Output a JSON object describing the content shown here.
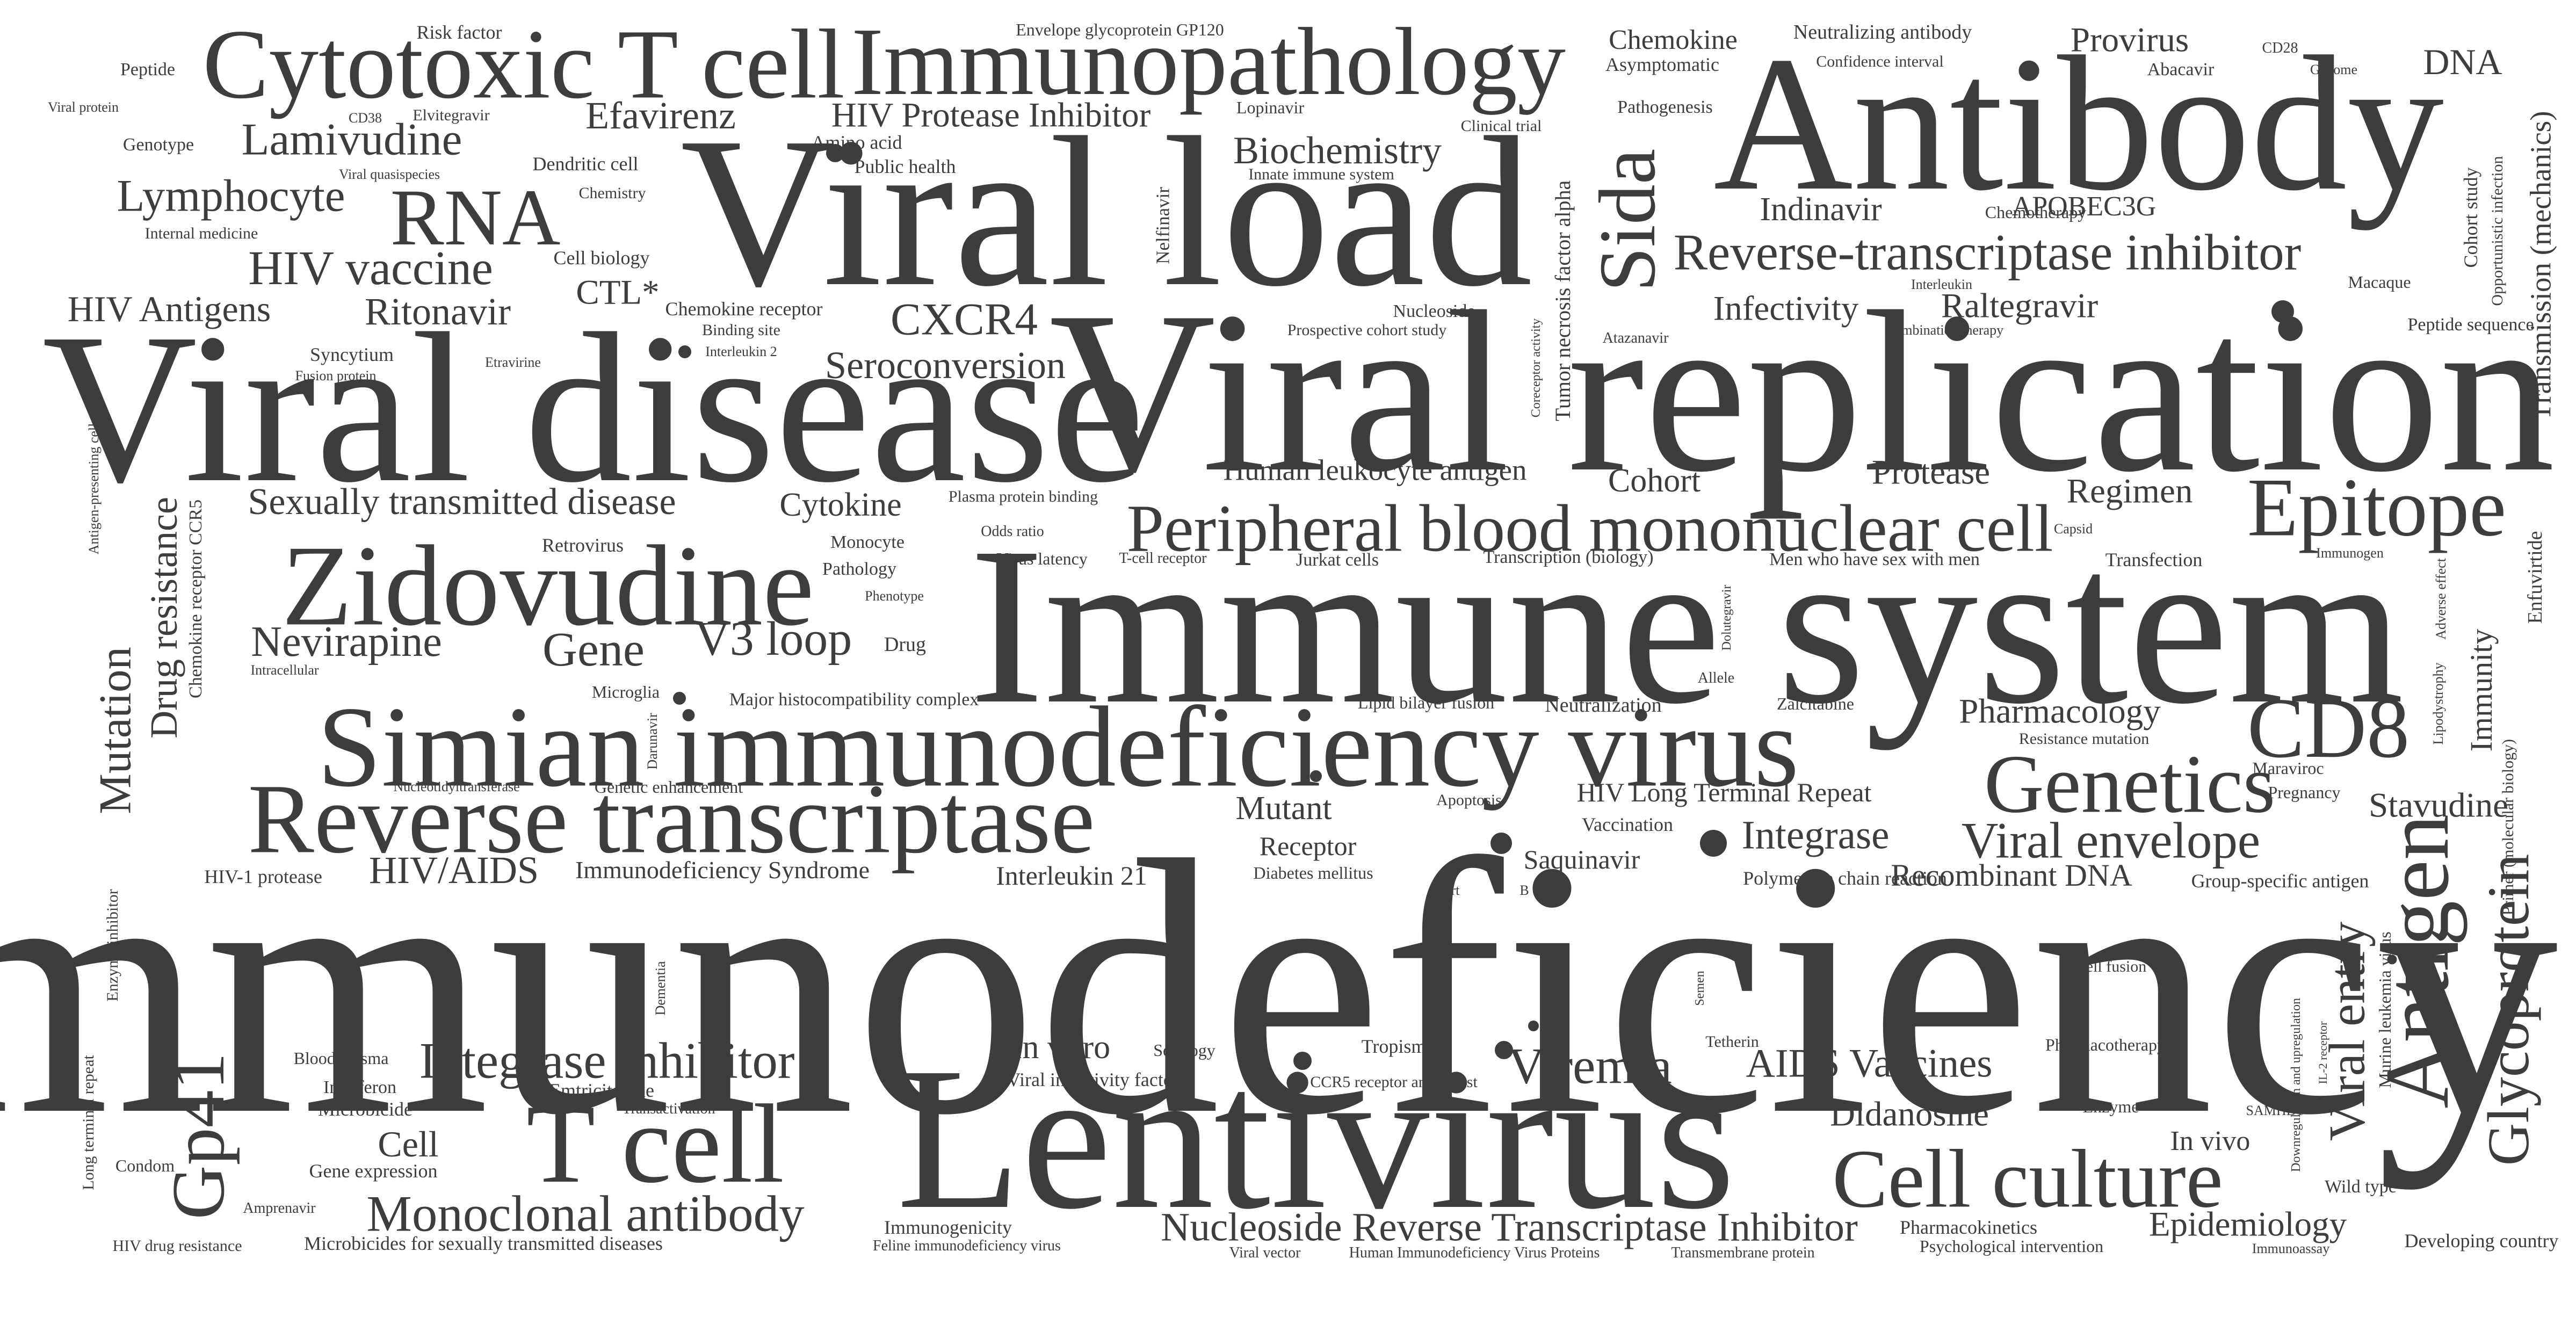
{
  "colors": {
    "background": "#ffffff",
    "text": "#3d3d3d"
  },
  "words": [
    {
      "text": "Immunodeficiency",
      "weight": 1.0
    },
    {
      "text": "Viral replication",
      "weight": 0.78
    },
    {
      "text": "Immune system",
      "weight": 0.76
    },
    {
      "text": "Viral disease",
      "weight": 0.72
    },
    {
      "text": "Viral load",
      "weight": 0.72
    },
    {
      "text": "Lentivirus",
      "weight": 0.72
    },
    {
      "text": "Antibody",
      "weight": 0.7
    },
    {
      "text": "Simian immunodeficiency virus",
      "weight": 0.38
    },
    {
      "text": "Reverse transcriptase",
      "weight": 0.36
    },
    {
      "text": "Zidovudine",
      "weight": 0.4
    },
    {
      "text": "Cytotoxic T cell",
      "weight": 0.34
    },
    {
      "text": "Immunopathology",
      "weight": 0.34
    },
    {
      "text": "T cell",
      "weight": 0.4
    },
    {
      "text": "Peripheral blood mononuclear cell",
      "weight": 0.24
    },
    {
      "text": "Epitope",
      "weight": 0.3
    },
    {
      "text": "CD8",
      "weight": 0.32
    },
    {
      "text": "Genetics",
      "weight": 0.3
    },
    {
      "text": "Antigen",
      "weight": 0.32
    },
    {
      "text": "Cell culture",
      "weight": 0.3
    },
    {
      "text": "Sida",
      "weight": 0.28
    },
    {
      "text": "RNA",
      "weight": 0.28
    },
    {
      "text": "Gp41",
      "weight": 0.26
    },
    {
      "text": "Viremia",
      "weight": 0.18
    },
    {
      "text": "Monoclonal antibody",
      "weight": 0.18
    },
    {
      "text": "Integrase inhibitor",
      "weight": 0.18
    },
    {
      "text": "Reverse-transcriptase inhibitor",
      "weight": 0.18
    },
    {
      "text": "Nucleoside Reverse Transcriptase Inhibitor",
      "weight": 0.15
    },
    {
      "text": "Glycoprotein",
      "weight": 0.22
    },
    {
      "text": "Viral envelope",
      "weight": 0.18
    },
    {
      "text": "Viral entry",
      "weight": 0.18
    },
    {
      "text": "Lymphocyte",
      "weight": 0.16
    },
    {
      "text": "HIV vaccine",
      "weight": 0.18
    },
    {
      "text": "Lamivudine",
      "weight": 0.17
    },
    {
      "text": "Efavirenz",
      "weight": 0.14
    },
    {
      "text": "Nevirapine",
      "weight": 0.15
    },
    {
      "text": "Gene",
      "weight": 0.16
    },
    {
      "text": "V3 loop",
      "weight": 0.17
    },
    {
      "text": "Mutation",
      "weight": 0.16
    },
    {
      "text": "Drug resistance",
      "weight": 0.14
    },
    {
      "text": "HIV/AIDS",
      "weight": 0.14
    },
    {
      "text": "Sexually transmitted disease",
      "weight": 0.14
    },
    {
      "text": "Seroconversion",
      "weight": 0.14
    },
    {
      "text": "CXCR4",
      "weight": 0.16
    },
    {
      "text": "Ritonavir",
      "weight": 0.14
    },
    {
      "text": "HIV Antigens",
      "weight": 0.13
    },
    {
      "text": "Biochemistry",
      "weight": 0.14
    },
    {
      "text": "HIV Protease Inhibitor",
      "weight": 0.13
    },
    {
      "text": "Indinavir",
      "weight": 0.13
    },
    {
      "text": "Infectivity",
      "weight": 0.13
    },
    {
      "text": "Raltegravir",
      "weight": 0.13
    },
    {
      "text": "Integrase",
      "weight": 0.15
    },
    {
      "text": "Epidemiology",
      "weight": 0.13
    },
    {
      "text": "AIDS Vaccines",
      "weight": 0.15
    },
    {
      "text": "Didanosine",
      "weight": 0.13
    },
    {
      "text": "Stavudine",
      "weight": 0.12
    },
    {
      "text": "Pharmacology",
      "weight": 0.12
    },
    {
      "text": "Regimen",
      "weight": 0.12
    },
    {
      "text": "Protease",
      "weight": 0.12
    },
    {
      "text": "Cohort",
      "weight": 0.12
    },
    {
      "text": "Cytokine",
      "weight": 0.12
    },
    {
      "text": "Human leukocyte antigen",
      "weight": 0.11
    },
    {
      "text": "Mutant",
      "weight": 0.12
    },
    {
      "text": "In vitro",
      "weight": 0.12
    },
    {
      "text": "Cell",
      "weight": 0.14
    },
    {
      "text": "Provirus",
      "weight": 0.12
    },
    {
      "text": "DNA",
      "weight": 0.12
    },
    {
      "text": "APOBEC3G",
      "weight": 0.1
    },
    {
      "text": "Recombinant DNA",
      "weight": 0.11
    },
    {
      "text": "Saquinavir",
      "weight": 0.1
    },
    {
      "text": "Immunity",
      "weight": 0.1
    },
    {
      "text": "Interleukin 21",
      "weight": 0.1
    },
    {
      "text": "Receptor",
      "weight": 0.1
    },
    {
      "text": "HIV Long Terminal Repeat",
      "weight": 0.1
    },
    {
      "text": "Transmission (mechanics)",
      "weight": 0.1
    },
    {
      "text": "Chemokine",
      "weight": 0.09
    },
    {
      "text": "In vivo",
      "weight": 0.1
    },
    {
      "text": "CTL*",
      "weight": 0.12
    },
    {
      "text": "Immunodeficiency Syndrome",
      "weight": 0.09
    },
    {
      "text": "Tumor necrosis factor alpha",
      "weight": 0.07
    },
    {
      "text": "Nelfinavir",
      "weight": 0.06
    },
    {
      "text": "Enfuvirtide",
      "weight": 0.06
    },
    {
      "text": "Cohort study",
      "weight": 0.06
    },
    {
      "text": "Opportunistic infection",
      "weight": 0.05
    },
    {
      "text": "Murine leukemia virus",
      "weight": 0.05
    },
    {
      "text": "Primer (molecular biology)",
      "weight": 0.05
    },
    {
      "text": "Dolutegravir",
      "weight": 0.04
    },
    {
      "text": "Coreceptor activity",
      "weight": 0.04
    },
    {
      "text": "Lipodystrophy",
      "weight": 0.04
    },
    {
      "text": "Adverse effect",
      "weight": 0.04
    },
    {
      "text": "Chemokine receptor CCR5",
      "weight": 0.05
    },
    {
      "text": "Antigen-presenting cell",
      "weight": 0.04
    },
    {
      "text": "Enzyme inhibitor",
      "weight": 0.05
    },
    {
      "text": "Long terminal repeat",
      "weight": 0.05
    },
    {
      "text": "Darunavir",
      "weight": 0.04
    },
    {
      "text": "Dementia",
      "weight": 0.04
    },
    {
      "text": "Semen",
      "weight": 0.04
    },
    {
      "text": "Downregulation and upregulation",
      "weight": 0.04
    },
    {
      "text": "IL-2 receptor",
      "weight": 0.04
    },
    {
      "text": "Neutralizing antibody",
      "weight": 0.06
    },
    {
      "text": "Envelope glycoprotein GP120",
      "weight": 0.05
    },
    {
      "text": "Risk factor",
      "weight": 0.06
    },
    {
      "text": "Peptide",
      "weight": 0.05
    },
    {
      "text": "Viral protein",
      "weight": 0.04
    },
    {
      "text": "Genotype",
      "weight": 0.05
    },
    {
      "text": "CD38",
      "weight": 0.04
    },
    {
      "text": "Elvitegravir",
      "weight": 0.04
    },
    {
      "text": "Viral quasispecies",
      "weight": 0.04
    },
    {
      "text": "Dendritic cell",
      "weight": 0.06
    },
    {
      "text": "Amino acid",
      "weight": 0.06
    },
    {
      "text": "Public health",
      "weight": 0.06
    },
    {
      "text": "Chemistry",
      "weight": 0.05
    },
    {
      "text": "Internal medicine",
      "weight": 0.05
    },
    {
      "text": "Cell biology",
      "weight": 0.06
    },
    {
      "text": "Chemokine receptor",
      "weight": 0.06
    },
    {
      "text": "Binding site",
      "weight": 0.05
    },
    {
      "text": "Interleukin 2",
      "weight": 0.04
    },
    {
      "text": "Syncytium",
      "weight": 0.06
    },
    {
      "text": "Fusion protein",
      "weight": 0.04
    },
    {
      "text": "Etravirine",
      "weight": 0.04
    },
    {
      "text": "Lopinavir",
      "weight": 0.05
    },
    {
      "text": "Clinical trial",
      "weight": 0.05
    },
    {
      "text": "Innate immune system",
      "weight": 0.05
    },
    {
      "text": "Pathogenesis",
      "weight": 0.06
    },
    {
      "text": "Asymptomatic",
      "weight": 0.06
    },
    {
      "text": "Confidence interval",
      "weight": 0.05
    },
    {
      "text": "Abacavir",
      "weight": 0.06
    },
    {
      "text": "CD28",
      "weight": 0.04
    },
    {
      "text": "Genome",
      "weight": 0.04
    },
    {
      "text": "Chemotherapy",
      "weight": 0.05
    },
    {
      "text": "Interleukin",
      "weight": 0.04
    },
    {
      "text": "Combination therapy",
      "weight": 0.04
    },
    {
      "text": "Macaque",
      "weight": 0.05
    },
    {
      "text": "Peptide sequence",
      "weight": 0.05
    },
    {
      "text": "Nucleoside",
      "weight": 0.05
    },
    {
      "text": "Prospective cohort study",
      "weight": 0.05
    },
    {
      "text": "Atazanavir",
      "weight": 0.04
    },
    {
      "text": "Plasma protein binding",
      "weight": 0.05
    },
    {
      "text": "Retrovirus",
      "weight": 0.06
    },
    {
      "text": "Monocyte",
      "weight": 0.05
    },
    {
      "text": "Odds ratio",
      "weight": 0.04
    },
    {
      "text": "Virus latency",
      "weight": 0.05
    },
    {
      "text": "T-cell receptor",
      "weight": 0.04
    },
    {
      "text": "Jurkat cells",
      "weight": 0.05
    },
    {
      "text": "Transcription (biology)",
      "weight": 0.05
    },
    {
      "text": "Men who have sex with men",
      "weight": 0.05
    },
    {
      "text": "Transfection",
      "weight": 0.06
    },
    {
      "text": "Capsid",
      "weight": 0.04
    },
    {
      "text": "Immunogen",
      "weight": 0.04
    },
    {
      "text": "Pathology",
      "weight": 0.05
    },
    {
      "text": "Phenotype",
      "weight": 0.04
    },
    {
      "text": "Drug",
      "weight": 0.06
    },
    {
      "text": "Intracellular",
      "weight": 0.04
    },
    {
      "text": "Microglia",
      "weight": 0.05
    },
    {
      "text": "Major histocompatibility complex",
      "weight": 0.05
    },
    {
      "text": "Lipid bilayer fusion",
      "weight": 0.05
    },
    {
      "text": "Neutralization",
      "weight": 0.06
    },
    {
      "text": "Zalcitabine",
      "weight": 0.05
    },
    {
      "text": "Allele",
      "weight": 0.04
    },
    {
      "text": "Resistance mutation",
      "weight": 0.05
    },
    {
      "text": "Maraviroc",
      "weight": 0.05
    },
    {
      "text": "Pregnancy",
      "weight": 0.05
    },
    {
      "text": "Nucleotidyltransferase",
      "weight": 0.04
    },
    {
      "text": "Genetic enhancement",
      "weight": 0.05
    },
    {
      "text": "Apoptosis",
      "weight": 0.05
    },
    {
      "text": "Vaccination",
      "weight": 0.06
    },
    {
      "text": "HIV-1 protease",
      "weight": 0.06
    },
    {
      "text": "Diabetes mellitus",
      "weight": 0.05
    },
    {
      "text": "Cart",
      "weight": 0.04
    },
    {
      "text": "B cell",
      "weight": 0.04
    },
    {
      "text": "Polymerase chain reaction",
      "weight": 0.06
    },
    {
      "text": "Group-specific antigen",
      "weight": 0.06
    },
    {
      "text": "Cell fusion",
      "weight": 0.05
    },
    {
      "text": "Blood plasma",
      "weight": 0.05
    },
    {
      "text": "Interferon",
      "weight": 0.06
    },
    {
      "text": "Microbicide",
      "weight": 0.06
    },
    {
      "text": "Emtricitabine",
      "weight": 0.06
    },
    {
      "text": "Transactivation",
      "weight": 0.05
    },
    {
      "text": "Gene expression",
      "weight": 0.06
    },
    {
      "text": "Serology",
      "weight": 0.05
    },
    {
      "text": "Tropism",
      "weight": 0.06
    },
    {
      "text": "Viral infectivity factor",
      "weight": 0.06
    },
    {
      "text": "CCR5 receptor antagonist",
      "weight": 0.05
    },
    {
      "text": "Tetherin",
      "weight": 0.05
    },
    {
      "text": "Pharmacotherapy",
      "weight": 0.05
    },
    {
      "text": "Enzyme",
      "weight": 0.05
    },
    {
      "text": "SAMHD1",
      "weight": 0.04
    },
    {
      "text": "Wild type",
      "weight": 0.06
    },
    {
      "text": "Condom",
      "weight": 0.05
    },
    {
      "text": "Amprenavir",
      "weight": 0.05
    },
    {
      "text": "HIV drug resistance",
      "weight": 0.05
    },
    {
      "text": "Microbicides for sexually transmitted diseases",
      "weight": 0.06
    },
    {
      "text": "Immunogenicity",
      "weight": 0.06
    },
    {
      "text": "Feline immunodeficiency virus",
      "weight": 0.05
    },
    {
      "text": "Viral vector",
      "weight": 0.05
    },
    {
      "text": "Human Immunodeficiency Virus Proteins",
      "weight": 0.05
    },
    {
      "text": "Transmembrane protein",
      "weight": 0.05
    },
    {
      "text": "Pharmacokinetics",
      "weight": 0.05
    },
    {
      "text": "Psychological intervention",
      "weight": 0.05
    },
    {
      "text": "Immunoassay",
      "weight": 0.04
    },
    {
      "text": "Developing country",
      "weight": 0.06
    }
  ]
}
